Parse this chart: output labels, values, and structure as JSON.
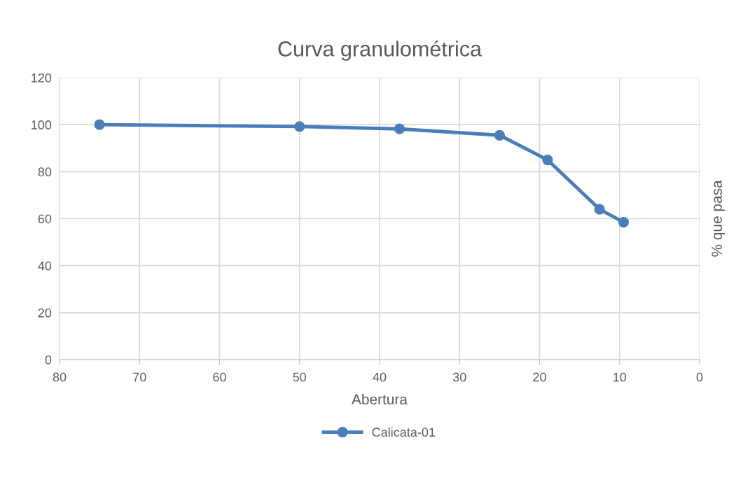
{
  "chart_data": {
    "type": "line",
    "title": "Curva granulométrica",
    "xlabel": "Abertura",
    "ylabel": "% que pasa",
    "x": [
      75,
      50,
      37.5,
      25,
      19,
      12.5,
      9.5
    ],
    "series": [
      {
        "name": "Calicata-01",
        "color": "#4a7ebb",
        "values": [
          100,
          99.2,
          98.2,
          95.5,
          85,
          64,
          58.5
        ]
      }
    ],
    "xlim": [
      80,
      0
    ],
    "xticks": [
      80,
      70,
      60,
      50,
      40,
      30,
      20,
      10,
      0
    ],
    "ylim": [
      0,
      120
    ],
    "yticks": [
      0,
      20,
      40,
      60,
      80,
      100,
      120
    ],
    "grid": true,
    "legend": "bottom",
    "marker": "circle",
    "line_style": "solid"
  }
}
